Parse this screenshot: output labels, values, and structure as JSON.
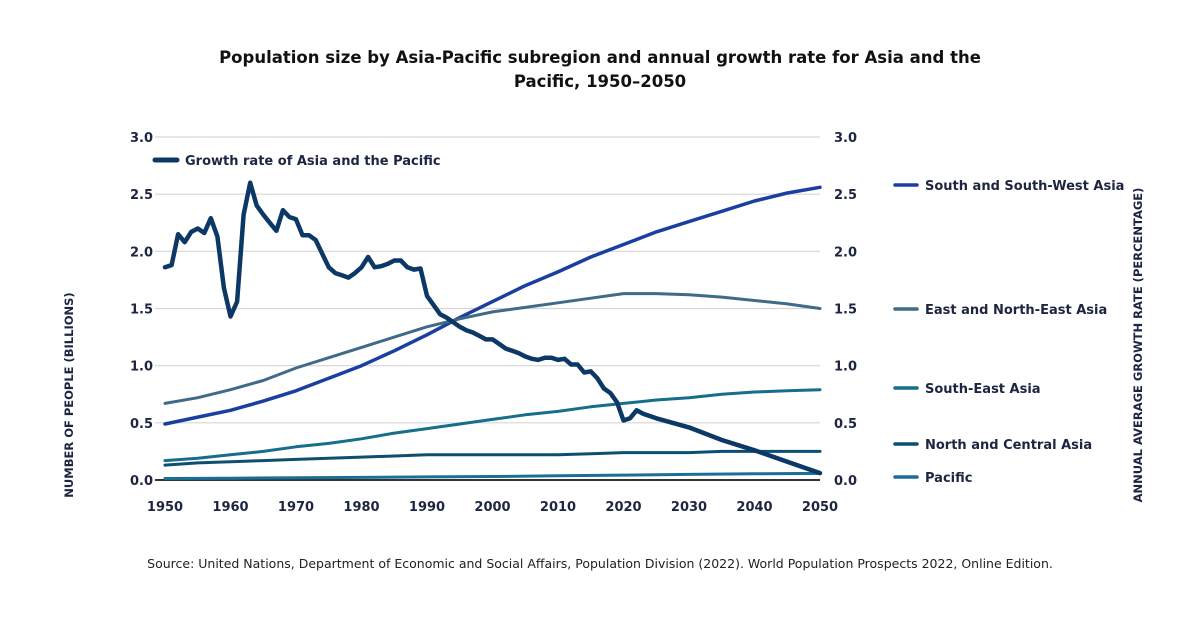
{
  "chart_data": {
    "type": "line",
    "title": "Population size by Asia-Pacific subregion and annual growth rate for Asia and the Pacific, 1950–2050",
    "title_lines": [
      "Population size by Asia-Pacific subregion and annual growth rate for Asia and the",
      "Pacific, 1950–2050"
    ],
    "xlabel": "",
    "ylabel": "NUMBER OF PEOPLE (BILLIONS)",
    "ylabel_right": "ANNUAL AVERAGE GROWTH RATE (PERCENTAGE)",
    "xlim": [
      1950,
      2050
    ],
    "ylim": [
      0,
      3.0
    ],
    "ylim_right": [
      0,
      3.0
    ],
    "x_ticks": [
      "1950",
      "1960",
      "1970",
      "1980",
      "1990",
      "2000",
      "2010",
      "2020",
      "2030",
      "2040",
      "2050"
    ],
    "y_ticks": [
      "0.0",
      "0.5",
      "1.0",
      "1.5",
      "2.0",
      "2.5",
      "3.0"
    ],
    "y_ticks_right": [
      "0.0",
      "0.5",
      "1.0",
      "1.5",
      "2.0",
      "2.5",
      "3.0"
    ],
    "grid": true,
    "legend_placement": "right",
    "series": [
      {
        "name": "South and South-West Asia",
        "axis": "left",
        "color": "#1a3fa0",
        "x": [
          1950,
          1955,
          1960,
          1965,
          1970,
          1975,
          1980,
          1985,
          1990,
          1995,
          2000,
          2005,
          2010,
          2015,
          2020,
          2025,
          2030,
          2035,
          2040,
          2045,
          2050
        ],
        "values": [
          0.49,
          0.55,
          0.61,
          0.69,
          0.78,
          0.89,
          1.0,
          1.13,
          1.27,
          1.42,
          1.56,
          1.7,
          1.82,
          1.95,
          2.06,
          2.17,
          2.26,
          2.35,
          2.44,
          2.51,
          2.56
        ]
      },
      {
        "name": "East and North-East Asia",
        "axis": "left",
        "color": "#3f6a88",
        "x": [
          1950,
          1955,
          1960,
          1965,
          1970,
          1975,
          1980,
          1985,
          1990,
          1995,
          2000,
          2005,
          2010,
          2015,
          2020,
          2025,
          2030,
          2035,
          2040,
          2045,
          2050
        ],
        "values": [
          0.67,
          0.72,
          0.79,
          0.87,
          0.98,
          1.07,
          1.16,
          1.25,
          1.34,
          1.41,
          1.47,
          1.51,
          1.55,
          1.59,
          1.63,
          1.63,
          1.62,
          1.6,
          1.57,
          1.54,
          1.5
        ]
      },
      {
        "name": "South-East Asia",
        "axis": "left",
        "color": "#156e8a",
        "x": [
          1950,
          1955,
          1960,
          1965,
          1970,
          1975,
          1980,
          1985,
          1990,
          1995,
          2000,
          2005,
          2010,
          2015,
          2020,
          2025,
          2030,
          2035,
          2040,
          2045,
          2050
        ],
        "values": [
          0.17,
          0.19,
          0.22,
          0.25,
          0.29,
          0.32,
          0.36,
          0.41,
          0.45,
          0.49,
          0.53,
          0.57,
          0.6,
          0.64,
          0.67,
          0.7,
          0.72,
          0.75,
          0.77,
          0.78,
          0.79
        ]
      },
      {
        "name": "North and Central Asia",
        "axis": "left",
        "color": "#0d4f70",
        "x": [
          1950,
          1955,
          1960,
          1965,
          1970,
          1975,
          1980,
          1985,
          1990,
          1995,
          2000,
          2005,
          2010,
          2015,
          2020,
          2025,
          2030,
          2035,
          2040,
          2045,
          2050
        ],
        "values": [
          0.13,
          0.15,
          0.16,
          0.17,
          0.18,
          0.19,
          0.2,
          0.21,
          0.22,
          0.22,
          0.22,
          0.22,
          0.22,
          0.23,
          0.24,
          0.24,
          0.24,
          0.25,
          0.25,
          0.25,
          0.25
        ]
      },
      {
        "name": "Pacific",
        "axis": "left",
        "color": "#1b6f96",
        "x": [
          1950,
          1960,
          1970,
          1980,
          1990,
          2000,
          2010,
          2020,
          2030,
          2040,
          2050
        ],
        "values": [
          0.013,
          0.016,
          0.02,
          0.023,
          0.027,
          0.031,
          0.037,
          0.043,
          0.049,
          0.054,
          0.058
        ]
      },
      {
        "name": "Growth rate of Asia and the Pacific",
        "axis": "right",
        "color": "#0c3866",
        "x": [
          1950,
          1951,
          1952,
          1953,
          1954,
          1955,
          1956,
          1957,
          1958,
          1959,
          1960,
          1961,
          1962,
          1963,
          1964,
          1965,
          1966,
          1967,
          1968,
          1969,
          1970,
          1971,
          1972,
          1973,
          1974,
          1975,
          1976,
          1977,
          1978,
          1979,
          1980,
          1981,
          1982,
          1983,
          1984,
          1985,
          1986,
          1987,
          1988,
          1989,
          1990,
          1991,
          1992,
          1993,
          1994,
          1995,
          1996,
          1997,
          1998,
          1999,
          2000,
          2001,
          2002,
          2003,
          2004,
          2005,
          2006,
          2007,
          2008,
          2009,
          2010,
          2011,
          2012,
          2013,
          2014,
          2015,
          2016,
          2017,
          2018,
          2019,
          2020,
          2021,
          2022,
          2023,
          2025,
          2030,
          2035,
          2040,
          2045,
          2050
        ],
        "values": [
          1.86,
          1.88,
          2.15,
          2.08,
          2.17,
          2.2,
          2.16,
          2.29,
          2.13,
          1.68,
          1.43,
          1.56,
          2.32,
          2.6,
          2.4,
          2.32,
          2.25,
          2.18,
          2.36,
          2.3,
          2.28,
          2.14,
          2.14,
          2.1,
          1.98,
          1.86,
          1.81,
          1.79,
          1.77,
          1.81,
          1.86,
          1.95,
          1.86,
          1.87,
          1.89,
          1.92,
          1.92,
          1.86,
          1.84,
          1.85,
          1.61,
          1.53,
          1.45,
          1.42,
          1.38,
          1.34,
          1.31,
          1.29,
          1.26,
          1.23,
          1.23,
          1.19,
          1.15,
          1.13,
          1.11,
          1.08,
          1.06,
          1.05,
          1.07,
          1.07,
          1.05,
          1.06,
          1.01,
          1.01,
          0.94,
          0.95,
          0.89,
          0.8,
          0.76,
          0.68,
          0.52,
          0.54,
          0.61,
          0.58,
          0.54,
          0.46,
          0.35,
          0.26,
          0.16,
          0.06
        ]
      }
    ]
  },
  "source": "Source: United Nations, Department of Economic and Social Affairs, Population Division (2022). World Population Prospects 2022, Online Edition."
}
